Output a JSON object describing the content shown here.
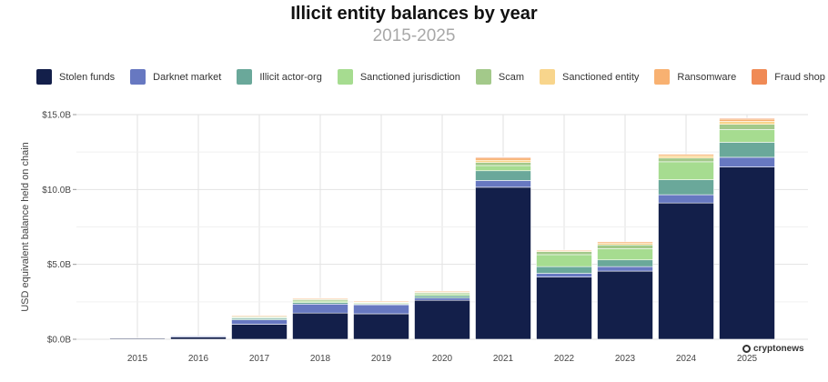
{
  "chart_data": {
    "type": "bar",
    "stacked": true,
    "title": "Illicit entity balances by year",
    "subtitle": "2015-2025",
    "xlabel": "",
    "ylabel": "USD equivalent balance held on chain",
    "ylim": [
      0,
      15
    ],
    "yticks": [
      {
        "value": 0,
        "label": "$0.0B"
      },
      {
        "value": 5,
        "label": "$5.0B"
      },
      {
        "value": 10,
        "label": "$10.0B"
      },
      {
        "value": 15,
        "label": "$15.0B"
      }
    ],
    "categories": [
      "2015",
      "2016",
      "2017",
      "2018",
      "2019",
      "2020",
      "2021",
      "2022",
      "2023",
      "2024",
      "2025"
    ],
    "series": [
      {
        "name": "Stolen funds",
        "color": "#131f4a",
        "values": [
          0.05,
          0.15,
          1.0,
          1.75,
          1.7,
          2.6,
          10.15,
          4.15,
          4.55,
          9.1,
          11.5
        ]
      },
      {
        "name": "Darknet market",
        "color": "#6778c1",
        "values": [
          0.0,
          0.03,
          0.3,
          0.6,
          0.6,
          0.15,
          0.45,
          0.25,
          0.3,
          0.55,
          0.65
        ]
      },
      {
        "name": "Illicit actor-org",
        "color": "#6aa89a",
        "values": [
          0.0,
          0.0,
          0.1,
          0.1,
          0.05,
          0.15,
          0.65,
          0.45,
          0.45,
          1.0,
          1.0
        ]
      },
      {
        "name": "Sanctioned jurisdiction",
        "color": "#a6dc90",
        "values": [
          0.0,
          0.0,
          0.05,
          0.1,
          0.05,
          0.1,
          0.35,
          0.8,
          0.75,
          1.2,
          0.85
        ]
      },
      {
        "name": "Scam",
        "color": "#a3c98a",
        "values": [
          0.0,
          0.0,
          0.05,
          0.1,
          0.05,
          0.1,
          0.2,
          0.2,
          0.25,
          0.25,
          0.35
        ]
      },
      {
        "name": "Sanctioned entity",
        "color": "#f8d58c",
        "values": [
          0.0,
          0.0,
          0.02,
          0.03,
          0.03,
          0.05,
          0.15,
          0.05,
          0.1,
          0.15,
          0.2
        ]
      },
      {
        "name": "Ransomware",
        "color": "#f8b171",
        "values": [
          0.0,
          0.0,
          0.01,
          0.02,
          0.02,
          0.03,
          0.15,
          0.05,
          0.1,
          0.1,
          0.15
        ]
      },
      {
        "name": "Fraud shop",
        "color": "#f08a55",
        "values": [
          0.0,
          0.0,
          0.0,
          0.0,
          0.0,
          0.0,
          0.05,
          0.0,
          0.0,
          0.0,
          0.05
        ]
      }
    ]
  },
  "watermark": {
    "text": "cryptonews"
  },
  "colors": {
    "grid": "#e2e2e2",
    "axis_text": "#444444"
  }
}
